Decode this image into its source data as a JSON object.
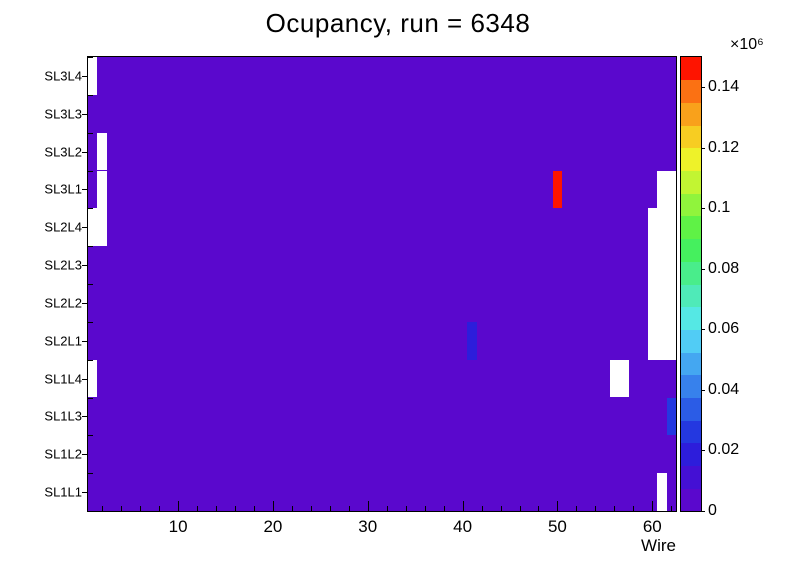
{
  "chart_data": {
    "type": "heatmap",
    "title": "Ocupancy, run = 6348",
    "xlabel": "Wire",
    "x_min": 0.5,
    "x_max": 62.5,
    "x_major_ticks": [
      10,
      20,
      30,
      40,
      50,
      60
    ],
    "x_minor_tick_step": 2,
    "y_categories": [
      "SL1L1",
      "SL1L2",
      "SL1L3",
      "SL1L4",
      "SL2L1",
      "SL2L2",
      "SL2L3",
      "SL2L4",
      "SL3L1",
      "SL3L2",
      "SL3L3",
      "SL3L4"
    ],
    "z_min": 0,
    "z_max": 0.15,
    "z_tick_values": [
      0,
      0.02,
      0.04,
      0.06,
      0.08,
      0.1,
      0.12,
      0.14
    ],
    "z_tick_labels": [
      "0",
      "0.02",
      "0.04",
      "0.06",
      "0.08",
      "0.1",
      "0.12",
      "0.14"
    ],
    "z_exponent_label": "×10⁶",
    "baseline_value": 0.004,
    "empty_color": "#ffffff",
    "palette": [
      "#5a08cd",
      "#4410d4",
      "#2d1ddb",
      "#2438e0",
      "#2b5ce6",
      "#3781ec",
      "#44a7f1",
      "#51ccf5",
      "#55e8e4",
      "#4feab8",
      "#49ed8b",
      "#45f05e",
      "#5ff246",
      "#90f43c",
      "#c2f532",
      "#eef229",
      "#f7cd22",
      "#f9a11b",
      "#fb7113",
      "#fe1400"
    ],
    "notable_bins": [
      {
        "layer": "SL3L1",
        "wire_from": 50,
        "wire_to": 50,
        "value": 0.148
      },
      {
        "layer": "SL2L1",
        "wire_from": 41,
        "wire_to": 41,
        "value": 0.022
      },
      {
        "layer": "SL1L3",
        "wire_from": 62,
        "wire_to": 62,
        "value": 0.028
      }
    ],
    "empty_bins": [
      {
        "layer": "SL3L4",
        "wire_from": 1,
        "wire_to": 1
      },
      {
        "layer": "SL3L2",
        "wire_from": 2,
        "wire_to": 2
      },
      {
        "layer": "SL3L1",
        "wire_from": 2,
        "wire_to": 2
      },
      {
        "layer": "SL2L4",
        "wire_from": 1,
        "wire_to": 2
      },
      {
        "layer": "SL1L4",
        "wire_from": 1,
        "wire_to": 1
      },
      {
        "layer": "SL3L1",
        "wire_from": 61,
        "wire_to": 62
      },
      {
        "layer": "SL2L4",
        "wire_from": 60,
        "wire_to": 62
      },
      {
        "layer": "SL2L3",
        "wire_from": 60,
        "wire_to": 62
      },
      {
        "layer": "SL2L2",
        "wire_from": 60,
        "wire_to": 62
      },
      {
        "layer": "SL2L1",
        "wire_from": 60,
        "wire_to": 62
      },
      {
        "layer": "SL1L4",
        "wire_from": 56,
        "wire_to": 57
      },
      {
        "layer": "SL1L1",
        "wire_from": 61,
        "wire_to": 61
      }
    ]
  }
}
